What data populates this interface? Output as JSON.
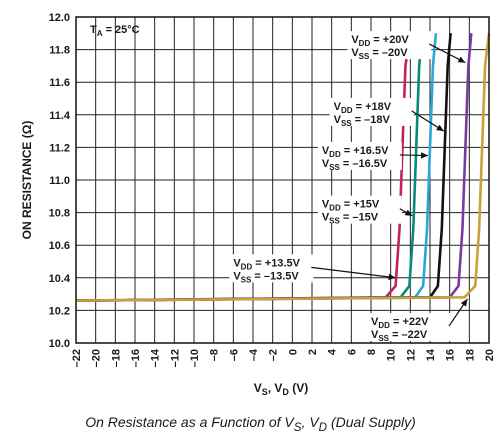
{
  "chart_data": {
    "type": "line",
    "ylabel": "ON RESISTANCE (Ω)",
    "xlabel": "VS, VD (V)",
    "xlabel_main": "V",
    "xlabel_sub1": "S",
    "xlabel_sep": ", V",
    "xlabel_sub2": "D",
    "xlabel_unit": " (V)",
    "condition": {
      "main": "T",
      "sub": "A",
      "rest": " = 25°C"
    },
    "xlim": [
      -22,
      20
    ],
    "ylim": [
      10.0,
      12.0
    ],
    "xticks": [
      -22,
      -20,
      -18,
      -16,
      -14,
      -12,
      -10,
      -8,
      -6,
      -4,
      -2,
      0,
      2,
      4,
      6,
      8,
      10,
      12,
      14,
      16,
      18,
      20
    ],
    "xtick_labels": [
      "–22",
      "–20",
      "–18",
      "–16",
      "–14",
      "–12",
      "–10",
      "–8",
      "–6",
      "–4",
      "–2",
      "0",
      "2",
      "4",
      "6",
      "8",
      "10",
      "12",
      "14",
      "16",
      "18",
      "20"
    ],
    "yticks": [
      10.0,
      10.2,
      10.4,
      10.6,
      10.8,
      11.0,
      11.2,
      11.4,
      11.6,
      11.8,
      12.0
    ],
    "ytick_labels": [
      "10.0",
      "10.2",
      "10.4",
      "10.6",
      "10.8",
      "11.0",
      "11.2",
      "11.4",
      "11.6",
      "11.8",
      "12.0"
    ],
    "grid": true,
    "series": [
      {
        "color": "#c0245a",
        "label_vdd": "+13.5V",
        "label_vss": "–13.5V",
        "x": [
          -22,
          9.5,
          10.5,
          10.9,
          11.2,
          11.5,
          12.0
        ],
        "y": [
          10.26,
          10.28,
          10.35,
          10.7,
          11.2,
          11.7,
          11.9
        ]
      },
      {
        "color": "#0a8a78",
        "label_vdd": "+15V",
        "label_vss": "–15V",
        "x": [
          -22,
          11.0,
          11.9,
          12.3,
          12.6,
          12.9,
          13.2
        ],
        "y": [
          10.26,
          10.28,
          10.35,
          10.7,
          11.2,
          11.7,
          11.9
        ]
      },
      {
        "color": "#2aa7d8",
        "label_vdd": "+16.5V",
        "label_vss": "–16.5V",
        "x": [
          -22,
          12.5,
          13.3,
          13.7,
          14.0,
          14.3,
          14.6
        ],
        "y": [
          10.26,
          10.28,
          10.35,
          10.7,
          11.2,
          11.7,
          11.9
        ]
      },
      {
        "color": "#111111",
        "label_vdd": "+18V",
        "label_vss": "–18V",
        "x": [
          -22,
          14.0,
          14.8,
          15.2,
          15.5,
          15.8,
          16.1
        ],
        "y": [
          10.26,
          10.28,
          10.35,
          10.7,
          11.2,
          11.7,
          11.9
        ]
      },
      {
        "color": "#7a3aa0",
        "label_vdd": "+20V",
        "label_vss": "–20V",
        "x": [
          -22,
          16.0,
          16.9,
          17.3,
          17.6,
          17.9,
          18.2
        ],
        "y": [
          10.26,
          10.28,
          10.35,
          10.7,
          11.2,
          11.7,
          11.9
        ]
      },
      {
        "color": "#c9a13a",
        "label_vdd": "+22V",
        "label_vss": "–22V",
        "x": [
          -22,
          17.5,
          18.6,
          19.0,
          19.3,
          19.6,
          20.0
        ],
        "y": [
          10.26,
          10.28,
          10.35,
          10.7,
          11.2,
          11.7,
          11.9
        ]
      }
    ],
    "annotations": [
      {
        "series": 4,
        "vdd": "+20V",
        "vss": "–20V",
        "tx": 6.0,
        "ty": 11.84,
        "ax": 17.6,
        "ay": 11.72
      },
      {
        "series": 3,
        "vdd": "+18V",
        "vss": "–18V",
        "tx": 4.2,
        "ty": 11.43,
        "ax": 15.4,
        "ay": 11.3
      },
      {
        "series": 2,
        "vdd": "+16.5V",
        "vss": "–16.5V",
        "tx": 3.0,
        "ty": 11.16,
        "ax": 13.8,
        "ay": 11.15
      },
      {
        "series": 1,
        "vdd": "+15V",
        "vss": "–15V",
        "tx": 3.0,
        "ty": 10.83,
        "ax": 12.2,
        "ay": 10.78
      },
      {
        "series": 0,
        "vdd": "+13.5V",
        "vss": "–13.5V",
        "tx": -6.0,
        "ty": 10.47,
        "ax": 10.5,
        "ay": 10.4
      },
      {
        "series": 5,
        "vdd": "+22V",
        "vss": "–22V",
        "tx": 8.0,
        "ty": 10.11,
        "ax": 17.8,
        "ay": 10.27
      }
    ]
  },
  "caption": {
    "text": "On Resistance as a Function of VS, VD (Dual Supply)",
    "prefix": "On Resistance as a Function of V",
    "sub1": "S",
    "sep": ", V",
    "sub2": "D",
    "suffix": " (Dual Supply)"
  }
}
